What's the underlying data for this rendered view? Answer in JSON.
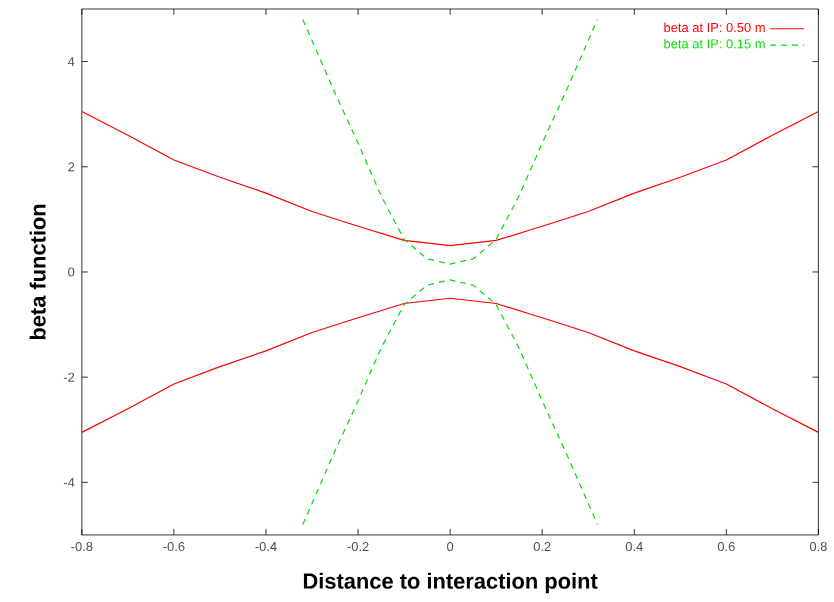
{
  "chart_data": {
    "type": "line",
    "xlabel": "Distance  to  interaction point",
    "ylabel": "beta function",
    "xlim": [
      -0.8,
      0.8
    ],
    "ylim": [
      -5,
      5
    ],
    "xticks": [
      -0.8,
      -0.6,
      -0.4,
      -0.2,
      0,
      0.2,
      0.4,
      0.6,
      0.8
    ],
    "yticks": [
      -4,
      -2,
      0,
      2,
      4
    ],
    "grid": false,
    "legend": "top right",
    "series": [
      {
        "name": "beta at IP: 0.50 m",
        "color": "#ff0000",
        "line_style": "solid",
        "x": [
          -0.8,
          -0.7,
          -0.6,
          -0.5,
          -0.4,
          -0.3,
          -0.2,
          -0.1,
          0,
          0.1,
          0.2,
          0.3,
          0.4,
          0.5,
          0.6,
          0.7,
          0.8
        ],
        "values": [
          3.05,
          2.6,
          2.13,
          1.8,
          1.5,
          1.15,
          0.87,
          0.6,
          0.5,
          0.6,
          0.87,
          1.15,
          1.5,
          1.8,
          2.13,
          2.6,
          3.05
        ]
      },
      {
        "color": "#ff0000",
        "line_style": "solid",
        "x": [
          -0.8,
          -0.7,
          -0.6,
          -0.5,
          -0.4,
          -0.3,
          -0.2,
          -0.1,
          0,
          0.1,
          0.2,
          0.3,
          0.4,
          0.5,
          0.6,
          0.7,
          0.8
        ],
        "values": [
          -3.05,
          -2.6,
          -2.13,
          -1.8,
          -1.5,
          -1.15,
          -0.87,
          -0.6,
          -0.5,
          -0.6,
          -0.87,
          -1.15,
          -1.5,
          -1.8,
          -2.13,
          -2.6,
          -3.05
        ]
      },
      {
        "name": "beta at IP: 0.15 m",
        "color": "#00dd00",
        "line_style": "dashed",
        "x": [
          -0.32,
          -0.3,
          -0.25,
          -0.2,
          -0.15,
          -0.1,
          -0.05,
          0,
          0.05,
          0.1,
          0.15,
          0.2,
          0.25,
          0.3,
          0.32
        ],
        "values": [
          4.8,
          4.4,
          3.4,
          2.45,
          1.45,
          0.62,
          0.25,
          0.15,
          0.25,
          0.62,
          1.45,
          2.45,
          3.4,
          4.4,
          4.8
        ]
      },
      {
        "color": "#00dd00",
        "line_style": "dashed",
        "x": [
          -0.32,
          -0.3,
          -0.25,
          -0.2,
          -0.15,
          -0.1,
          -0.05,
          0,
          0.05,
          0.1,
          0.15,
          0.2,
          0.25,
          0.3,
          0.32
        ],
        "values": [
          -4.8,
          -4.4,
          -3.4,
          -2.45,
          -1.45,
          -0.62,
          -0.25,
          -0.15,
          -0.25,
          -0.62,
          -1.45,
          -2.45,
          -3.4,
          -4.4,
          -4.8
        ]
      }
    ]
  }
}
